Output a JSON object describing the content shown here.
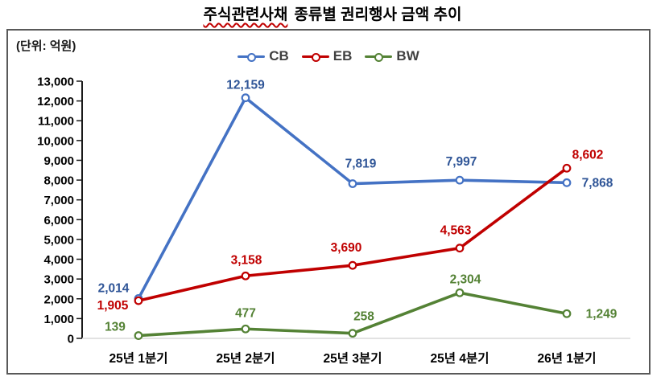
{
  "title": {
    "highlighted": "주식관련사채",
    "rest": "종류별 권리행사 금액 추이"
  },
  "unit_label": "(단위: 억원)",
  "chart_data": {
    "type": "line",
    "title": "주식관련사채 종류별 권리행사 금액 추이",
    "unit": "(단위: 억원)",
    "categories": [
      "25년 1분기",
      "25년 2분기",
      "25년 3분기",
      "25년 4분기",
      "26년 1분기"
    ],
    "series": [
      {
        "name": "CB",
        "color": "#4472C4",
        "label_color": "#2F5597",
        "values": [
          2014,
          12159,
          7819,
          7997,
          7868
        ],
        "label_offsets": [
          [
            -31,
            -8
          ],
          [
            0,
            -11
          ],
          [
            10,
            -20
          ],
          [
            2,
            -18
          ],
          [
            38,
            5
          ]
        ]
      },
      {
        "name": "EB",
        "color": "#C00000",
        "label_color": "#C00000",
        "values": [
          1905,
          3158,
          3690,
          4563,
          8602
        ],
        "label_offsets": [
          [
            -32,
            11
          ],
          [
            1,
            -15
          ],
          [
            -8,
            -17
          ],
          [
            -5,
            -17
          ],
          [
            26,
            -12
          ]
        ]
      },
      {
        "name": "BW",
        "color": "#548235",
        "label_color": "#548235",
        "values": [
          139,
          477,
          258,
          2304,
          1249
        ],
        "label_offsets": [
          [
            -29,
            -6
          ],
          [
            0,
            -15
          ],
          [
            14,
            -16
          ],
          [
            7,
            -12
          ],
          [
            43,
            5
          ]
        ]
      }
    ],
    "ylim": [
      0,
      13000
    ],
    "ytick_step": 1000,
    "ytick_labels": [
      "0",
      "1,000",
      "2,000",
      "3,000",
      "4,000",
      "5,000",
      "6,000",
      "7,000",
      "8,000",
      "9,000",
      "10,000",
      "11,000",
      "12,000",
      "13,000"
    ],
    "legend_position": "top",
    "grid": false,
    "axis_color": "#1a1a1a",
    "baseline_color": "#d9d9d9",
    "tick_label_color": "#000000"
  }
}
